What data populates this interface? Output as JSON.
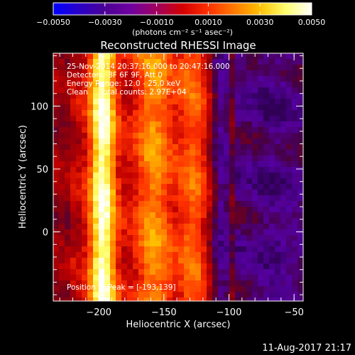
{
  "chart_data": {
    "type": "heatmap",
    "title": "Reconstructed RHESSI Image",
    "xlabel": "Heliocentric X (arcsec)",
    "ylabel": "Heliocentric Y (arcsec)",
    "xlim": [
      -235,
      -43
    ],
    "ylim": [
      -55,
      142
    ],
    "xticks": [
      -200,
      -150,
      -100,
      -50
    ],
    "yticks": [
      0,
      50,
      100
    ],
    "xtick_labels": [
      "−200",
      "−150",
      "−100",
      "−50"
    ],
    "ytick_labels": [
      "0",
      "50",
      "100"
    ],
    "colorbar": {
      "range": [
        -0.005,
        0.005
      ],
      "ticks": [
        -0.005,
        -0.003,
        -0.001,
        0.001,
        0.003,
        0.005
      ],
      "tick_labels": [
        "−0.0050",
        "−0.0030",
        "−0.0010",
        "0.0010",
        "0.0030",
        "0.0050"
      ],
      "unit_label": "(photons cm⁻² s⁻¹ asec⁻²)",
      "colors": [
        "#0000ff",
        "#2a00c8",
        "#4b0096",
        "#7000a0",
        "#a00060",
        "#d40000",
        "#ff3000",
        "#ff7a00",
        "#ffc000",
        "#ffff70",
        "#ffffff"
      ]
    },
    "annotations": {
      "time_range": "25-Nov-2014 20:37:16.000 to 20:47:16.000",
      "detectors": "Detectors: 3F 6F 9F, Att 0",
      "energy_range": "Energy Range: 12.0 - 25.0 keV",
      "method_counts": "Clean     Total counts: 2.97E+04",
      "peak": "Position of Peak = [-193,139]"
    },
    "peak_position": [
      -193,
      139
    ],
    "bright_band_x": -197,
    "secondary_band_x": -158,
    "tertiary_band_x": -128,
    "dark_trough_x": -105,
    "grid": false
  },
  "footer": {
    "timestamp": "11-Aug-2017 21:17"
  }
}
